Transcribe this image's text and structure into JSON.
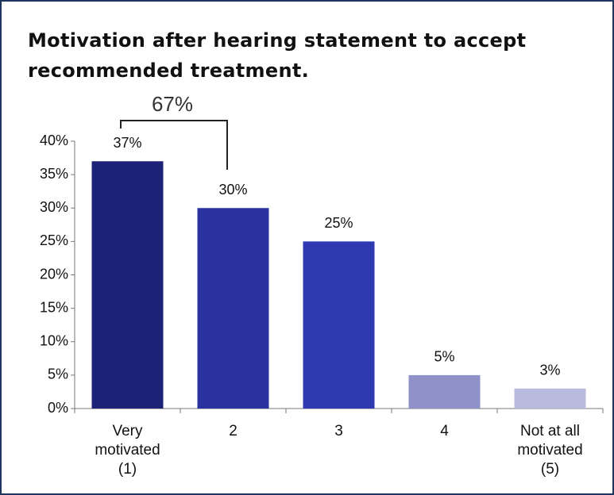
{
  "chart_data": {
    "type": "bar",
    "title": "Motivation after hearing statement to accept recommended treatment.",
    "annotations": [
      "67%"
    ],
    "categories": [
      "Very motivated (1)",
      "2",
      "3",
      "4",
      "Not at all motivated (5)"
    ],
    "values": [
      37,
      30,
      25,
      5,
      3
    ],
    "value_labels": [
      "37%",
      "30%",
      "25%",
      "5%",
      "3%"
    ],
    "colors": [
      "#1c2276",
      "#2a32a0",
      "#2f3ab2",
      "#8e92c8",
      "#b9bbdc"
    ],
    "ylim": [
      0,
      40
    ],
    "yticks": [
      {
        "value": 0,
        "label": "0%"
      },
      {
        "value": 5,
        "label": "5%"
      },
      {
        "value": 10,
        "label": "10%"
      },
      {
        "value": 15,
        "label": "15%"
      },
      {
        "value": 20,
        "label": "20%"
      },
      {
        "value": 25,
        "label": "25%"
      },
      {
        "value": 30,
        "label": "30%"
      },
      {
        "value": 35,
        "label": "35%"
      },
      {
        "value": 40,
        "label": "40%"
      }
    ],
    "grid": false
  }
}
